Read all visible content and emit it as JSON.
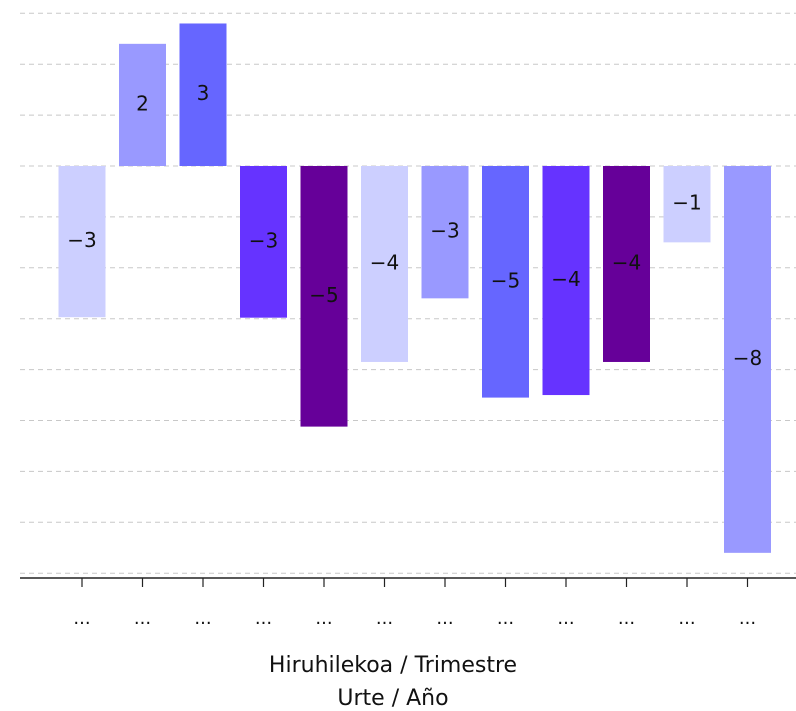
{
  "chart_data": {
    "type": "bar",
    "categories": [
      "...",
      "...",
      "...",
      "...",
      "...",
      "...",
      "...",
      "...",
      "...",
      "...",
      "...",
      "..."
    ],
    "values": [
      -3,
      2,
      3,
      -3,
      -5,
      -4,
      -3,
      -5,
      -4,
      -4,
      -1,
      -8
    ],
    "exact_values": [
      -2.97,
      2.4,
      2.8,
      -2.98,
      -5.12,
      -3.85,
      -2.6,
      -4.55,
      -4.5,
      -3.85,
      -1.5,
      -7.6
    ],
    "colors": [
      "#cccfff",
      "#9999ff",
      "#6666ff",
      "#6633ff",
      "#660099",
      "#cccfff",
      "#9999ff",
      "#6666ff",
      "#6633ff",
      "#660099",
      "#cccfff",
      "#9999ff"
    ],
    "xlabel": [
      "Hiruhilekoa / Trimestre",
      "Urte / Año"
    ],
    "ylabel": "",
    "ylim": [
      -8.2,
      3.2
    ],
    "grid": true
  }
}
